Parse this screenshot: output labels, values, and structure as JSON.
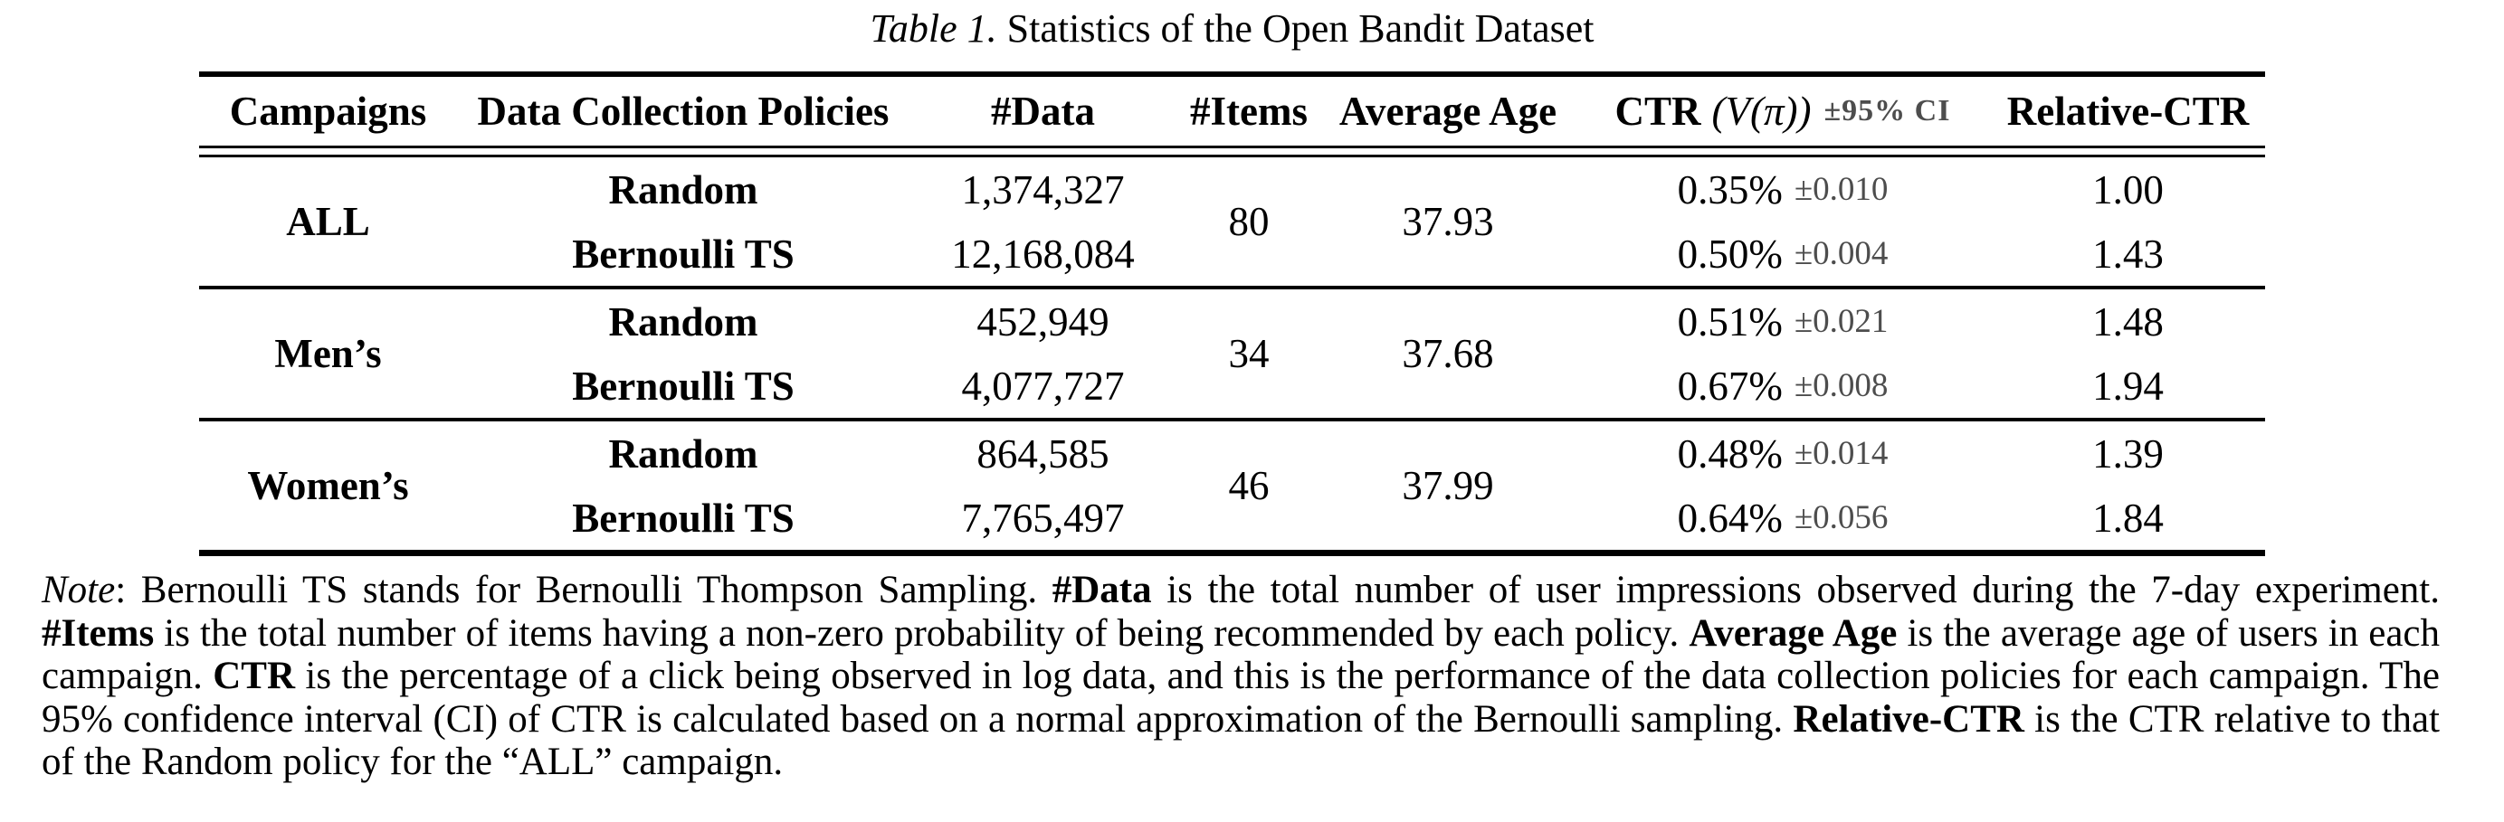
{
  "caption": {
    "label": "Table 1.",
    "title": " Statistics of the Open Bandit Dataset"
  },
  "table": {
    "header": {
      "campaigns": "Campaigns",
      "policies": "Data Collection Policies",
      "data": "#Data",
      "items": "#Items",
      "avg_age": "Average Age",
      "ctr_main": "CTR",
      "ctr_math": "(V(π))",
      "ctr_ci": "±95% CI",
      "relative_ctr": "Relative-CTR"
    },
    "groups": [
      {
        "campaign": "ALL",
        "items": "80",
        "avg_age": "37.93",
        "rows": [
          {
            "policy": "Random",
            "data": "1,374,327",
            "ctr": "0.35%",
            "ci": "±0.010",
            "relative_ctr": "1.00"
          },
          {
            "policy": "Bernoulli TS",
            "data": "12,168,084",
            "ctr": "0.50%",
            "ci": "±0.004",
            "relative_ctr": "1.43"
          }
        ]
      },
      {
        "campaign": "Men’s",
        "items": "34",
        "avg_age": "37.68",
        "rows": [
          {
            "policy": "Random",
            "data": "452,949",
            "ctr": "0.51%",
            "ci": "±0.021",
            "relative_ctr": "1.48"
          },
          {
            "policy": "Bernoulli TS",
            "data": "4,077,727",
            "ctr": "0.67%",
            "ci": "±0.008",
            "relative_ctr": "1.94"
          }
        ]
      },
      {
        "campaign": "Women’s",
        "items": "46",
        "avg_age": "37.99",
        "rows": [
          {
            "policy": "Random",
            "data": "864,585",
            "ctr": "0.48%",
            "ci": "±0.014",
            "relative_ctr": "1.39"
          },
          {
            "policy": "Bernoulli TS",
            "data": "7,765,497",
            "ctr": "0.64%",
            "ci": "±0.056",
            "relative_ctr": "1.84"
          }
        ]
      }
    ]
  },
  "note": {
    "segments": [
      {
        "text": "Note",
        "style": "italic"
      },
      {
        "text": ": Bernoulli TS stands for Bernoulli Thompson Sampling. ",
        "style": "normal"
      },
      {
        "text": "#Data",
        "style": "bold"
      },
      {
        "text": " is the total number of user impressions observed during the 7-day experiment. ",
        "style": "normal"
      },
      {
        "text": "#Items",
        "style": "bold"
      },
      {
        "text": " is the total number of items having a non-zero probability of being recommended by each policy. ",
        "style": "normal"
      },
      {
        "text": "Average Age",
        "style": "bold"
      },
      {
        "text": " is the average age of users in each campaign. ",
        "style": "normal"
      },
      {
        "text": "CTR",
        "style": "bold"
      },
      {
        "text": " is the percentage of a click being observed in log data, and this is the performance of the data collection policies for each campaign. The 95% confidence interval (CI) of CTR is calculated based on a normal approximation of the Bernoulli sampling. ",
        "style": "normal"
      },
      {
        "text": "Relative-CTR",
        "style": "bold"
      },
      {
        "text": " is the CTR relative to that of the Random policy for the “ALL” campaign.",
        "style": "normal"
      }
    ]
  },
  "colors": {
    "text": "#000000",
    "ci_gray": "#4d4d4d",
    "rule": "#000000",
    "background": "#ffffff"
  }
}
